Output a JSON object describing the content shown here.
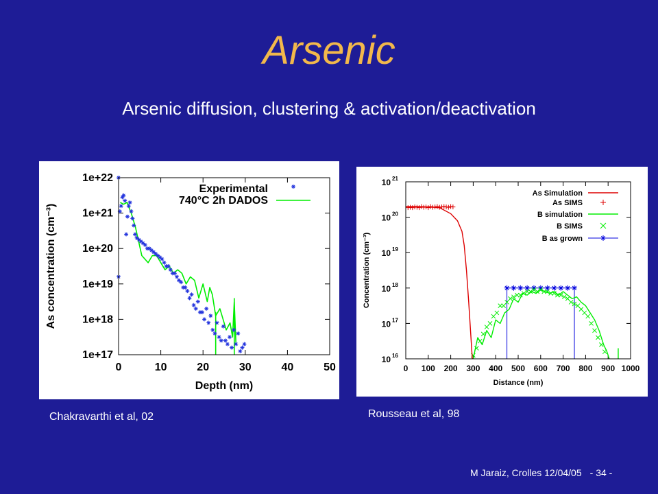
{
  "slide": {
    "title": "Arsenic",
    "subtitle": "Arsenic diffusion, clustering & activation/deactivation",
    "caption_left": "Chakravarthi et al, 02",
    "caption_right": "Rousseau et al, 98",
    "footer": "M Jaraiz, Crolles 12/04/05",
    "page": "- 34 -"
  },
  "chart_data": [
    {
      "type": "scatter",
      "ylabel": "As concentration (cm⁻³)",
      "xlabel": "Depth (nm)",
      "xlim": [
        0,
        50
      ],
      "ylim_log10": [
        17,
        22
      ],
      "x_ticks": [
        "0",
        "10",
        "20",
        "30",
        "40",
        "50"
      ],
      "y_ticks": [
        "1e+17",
        "1e+18",
        "1e+19",
        "1e+20",
        "1e+21",
        "1e+22"
      ],
      "grid": false,
      "legend": "top-right",
      "colors": {
        "experimental": "#2233dd",
        "simulation": "#00ee00"
      },
      "series": [
        {
          "name": "Experimental",
          "marker": "*",
          "x": [
            0,
            0,
            0.3,
            0.6,
            0.9,
            1.2,
            1.5,
            1.8,
            2.1,
            2.4,
            2.7,
            3.0,
            3.3,
            3.6,
            3.9,
            4.3,
            4.8,
            5.3,
            5.8,
            6.3,
            6.8,
            7.3,
            7.8,
            8.3,
            8.8,
            9.3,
            9.8,
            10.3,
            10.8,
            11.3,
            11.8,
            12.3,
            12.8,
            13.3,
            13.8,
            14.3,
            14.8,
            15.3,
            15.8,
            16.3,
            16.8,
            17.3,
            17.8,
            18.3,
            18.8,
            19.3,
            19.8,
            20.3,
            20.8,
            21.3,
            21.8,
            22.3,
            22.8,
            23.3,
            23.8,
            24.3,
            24.8,
            25.3,
            25.8,
            26.3,
            26.8,
            27.3,
            27.8,
            28.3,
            28.8,
            29.3,
            29.8
          ],
          "log10_y": [
            22.0,
            19.2,
            21.05,
            21.2,
            21.45,
            21.5,
            21.35,
            20.4,
            20.9,
            21.2,
            21.3,
            21.05,
            20.85,
            20.65,
            20.4,
            20.3,
            20.25,
            20.2,
            20.15,
            20.1,
            20.0,
            20.0,
            19.95,
            19.9,
            19.85,
            19.8,
            19.75,
            19.7,
            19.6,
            19.5,
            19.5,
            19.4,
            19.3,
            19.3,
            19.2,
            19.1,
            19.05,
            18.9,
            18.9,
            18.8,
            18.6,
            18.7,
            18.4,
            18.3,
            18.5,
            18.2,
            18.2,
            18.0,
            18.3,
            17.9,
            18.1,
            17.7,
            17.6,
            17.9,
            17.5,
            17.4,
            17.8,
            17.4,
            17.3,
            17.5,
            17.2,
            17.7,
            17.3,
            17.6,
            17.1,
            17.2,
            17.3
          ]
        },
        {
          "name": "740°C 2h DADOS",
          "x": [
            0.4,
            1.2,
            2.0,
            3.0,
            4.0,
            5.5,
            7.0,
            8.0,
            9.0,
            10.0,
            11.0,
            12.0,
            13.0,
            14.0,
            15.0,
            16.0,
            17.0,
            18.0,
            19.0,
            20.0,
            21.0,
            21.6,
            22.2,
            23.0,
            24.0,
            25.5,
            26.4,
            27.0,
            27.4,
            27.8
          ],
          "log10_y": [
            21.3,
            21.25,
            21.3,
            21.0,
            20.6,
            19.8,
            19.6,
            19.8,
            19.8,
            19.6,
            19.4,
            19.5,
            19.3,
            19.4,
            19.3,
            19.0,
            19.2,
            19.1,
            18.6,
            19.0,
            18.5,
            18.9,
            18.7,
            18.1,
            18.3,
            17.7,
            17.9,
            17.5,
            18.5,
            17.3
          ]
        },
        {
          "name": "740°C 2h DADOS (spikes)",
          "segments": [
            {
              "x": 23.0,
              "log10_from": 17.0,
              "log10_to": 18.2
            },
            {
              "x": 27.4,
              "log10_from": 17.0,
              "log10_to": 18.6
            }
          ]
        }
      ]
    },
    {
      "type": "line",
      "ylabel": "Concentration (cm⁻³)",
      "xlabel": "Distance (nm)",
      "xlim": [
        0,
        1000
      ],
      "ylim_log10": [
        16,
        21
      ],
      "x_ticks": [
        "0",
        "100",
        "200",
        "300",
        "400",
        "500",
        "600",
        "700",
        "800",
        "900",
        "1000"
      ],
      "y_ticks_exp": [
        "16",
        "17",
        "18",
        "19",
        "20",
        "21"
      ],
      "y_ticks_base": "10",
      "legend": "top-right",
      "colors": {
        "as_sim": "#dd0000",
        "b_sim": "#00ee00",
        "b_grown": "#0000dd"
      },
      "series": [
        {
          "name": "As Simulation",
          "x": [
            0,
            50,
            100,
            150,
            200,
            230,
            250,
            260,
            270,
            280,
            288,
            293,
            296
          ],
          "log10_y": [
            20.3,
            20.3,
            20.29,
            20.27,
            20.1,
            19.9,
            19.6,
            19.2,
            18.5,
            17.6,
            16.8,
            16.3,
            16.0
          ]
        },
        {
          "name": "As SIMS",
          "marker": "+",
          "x": [
            10,
            20,
            30,
            40,
            50,
            60,
            70,
            80,
            90,
            100,
            110,
            120,
            130,
            140,
            150,
            160,
            170,
            180,
            190,
            200,
            210
          ],
          "log10_y": [
            20.27,
            20.28,
            20.27,
            20.29,
            20.28,
            20.27,
            20.3,
            20.28,
            20.29,
            20.27,
            20.3,
            20.28,
            20.29,
            20.3,
            20.28,
            20.29,
            20.3,
            20.29,
            20.28,
            20.3,
            20.29
          ]
        },
        {
          "name": "B simulation",
          "x": [
            300,
            320,
            340,
            360,
            380,
            400,
            420,
            440,
            460,
            480,
            500,
            520,
            540,
            560,
            580,
            600,
            620,
            640,
            660,
            680,
            700,
            720,
            740,
            760,
            780,
            800,
            820,
            840,
            860,
            880,
            895,
            905
          ],
          "log10_y": [
            16.0,
            16.6,
            16.4,
            16.8,
            16.6,
            17.1,
            17.0,
            17.3,
            17.4,
            17.7,
            17.6,
            17.85,
            17.8,
            17.9,
            17.85,
            17.95,
            17.9,
            17.85,
            17.9,
            17.8,
            17.9,
            17.8,
            17.7,
            17.75,
            17.6,
            17.5,
            17.3,
            17.1,
            16.8,
            16.4,
            16.2,
            16.0
          ]
        },
        {
          "name": "B SIMS",
          "marker": "x",
          "x": [
            300,
            315,
            330,
            345,
            360,
            375,
            390,
            405,
            420,
            435,
            450,
            465,
            480,
            495,
            510,
            525,
            540,
            555,
            570,
            585,
            600,
            615,
            630,
            645,
            660,
            675,
            690,
            705,
            720,
            735,
            750,
            765,
            780,
            795,
            810,
            825,
            840,
            855,
            870,
            885
          ],
          "log10_y": [
            16.1,
            16.3,
            16.5,
            16.7,
            16.9,
            17.0,
            17.2,
            17.3,
            17.5,
            17.5,
            17.6,
            17.7,
            17.75,
            17.8,
            17.8,
            17.85,
            17.9,
            17.9,
            17.95,
            17.9,
            17.95,
            17.9,
            17.9,
            17.85,
            17.85,
            17.8,
            17.8,
            17.75,
            17.7,
            17.6,
            17.55,
            17.5,
            17.4,
            17.3,
            17.2,
            17.0,
            16.8,
            16.6,
            16.4,
            16.2
          ]
        },
        {
          "name": "B as grown",
          "marker": "*",
          "x": [
            450,
            480,
            510,
            540,
            570,
            600,
            630,
            660,
            690,
            720,
            750
          ],
          "log10_y": [
            18.0,
            18.0,
            18.0,
            18.0,
            18.0,
            18.0,
            18.0,
            18.0,
            18.0,
            18.0,
            18.0
          ]
        }
      ]
    }
  ]
}
